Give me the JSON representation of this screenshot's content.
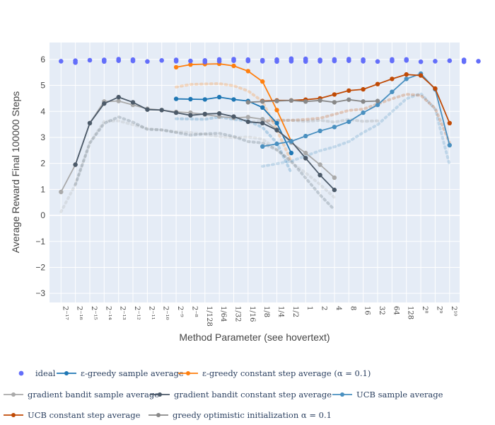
{
  "chart_data": {
    "type": "line",
    "title": "",
    "xlabel": "Method Parameter (see hovertext)",
    "ylabel": "Average Reward Final 100000 Steps",
    "ylim": [
      -3.35,
      6.65
    ],
    "yticks": [
      "6",
      "5",
      "4",
      "3",
      "2",
      "1",
      "0",
      "−1",
      "−2",
      "−3"
    ],
    "ytick_values": [
      6,
      5,
      4,
      3,
      2,
      1,
      0,
      -1,
      -2,
      -3
    ],
    "x_exponent_range": [
      -17.8,
      10.7
    ],
    "xtick_labels": [
      {
        "e": -17,
        "text": "2⁻¹⁷"
      },
      {
        "e": -16,
        "text": "2⁻¹⁶"
      },
      {
        "e": -15,
        "text": "2⁻¹⁵"
      },
      {
        "e": -14,
        "text": "2⁻¹⁴"
      },
      {
        "e": -13,
        "text": "2⁻¹³"
      },
      {
        "e": -12,
        "text": "2⁻¹²"
      },
      {
        "e": -11,
        "text": "2⁻¹¹"
      },
      {
        "e": -10,
        "text": "2⁻¹⁰"
      },
      {
        "e": -9,
        "text": "2⁻⁹"
      },
      {
        "e": -8,
        "text": "2⁻⁸"
      },
      {
        "e": -7,
        "text": "1/128"
      },
      {
        "e": -6,
        "text": "1/64"
      },
      {
        "e": -5,
        "text": "1/32"
      },
      {
        "e": -4,
        "text": "1/16"
      },
      {
        "e": -3,
        "text": "1/8"
      },
      {
        "e": -2,
        "text": "1/4"
      },
      {
        "e": -1,
        "text": "1/2"
      },
      {
        "e": 0,
        "text": "1"
      },
      {
        "e": 1,
        "text": "2"
      },
      {
        "e": 2,
        "text": "4"
      },
      {
        "e": 3,
        "text": "8"
      },
      {
        "e": 4,
        "text": "16"
      },
      {
        "e": 5,
        "text": "32"
      },
      {
        "e": 6,
        "text": "64"
      },
      {
        "e": 7,
        "text": "128"
      },
      {
        "e": 8,
        "text": "2⁸"
      },
      {
        "e": 9,
        "text": "2⁹"
      },
      {
        "e": 10,
        "text": "2¹⁰"
      }
    ],
    "ideal": {
      "name": "ideal",
      "color": "#636efa",
      "points": [
        [
          -17,
          5.93
        ],
        [
          -16,
          5.88
        ],
        [
          -16,
          5.95
        ],
        [
          -15,
          5.97
        ],
        [
          -14,
          5.92
        ],
        [
          -14,
          5.98
        ],
        [
          -13,
          5.95
        ],
        [
          -13,
          6.01
        ],
        [
          -12,
          5.94
        ],
        [
          -12,
          5.99
        ],
        [
          -11,
          5.92
        ],
        [
          -10,
          5.96
        ],
        [
          -9,
          5.93
        ],
        [
          -9,
          5.98
        ],
        [
          -8,
          5.94
        ],
        [
          -7,
          5.9
        ],
        [
          -7,
          5.96
        ],
        [
          -6,
          5.93
        ],
        [
          -6,
          6.0
        ],
        [
          -5,
          5.95
        ],
        [
          -5,
          6.01
        ],
        [
          -4,
          5.94
        ],
        [
          -4,
          5.99
        ],
        [
          -3,
          5.93
        ],
        [
          -3,
          5.97
        ],
        [
          -2,
          5.92
        ],
        [
          -2,
          5.99
        ],
        [
          -1,
          5.93
        ],
        [
          -1,
          5.98
        ],
        [
          -1,
          6.03
        ],
        [
          0,
          5.92
        ],
        [
          0,
          5.97
        ],
        [
          0,
          6.02
        ],
        [
          1,
          5.93
        ],
        [
          1,
          5.98
        ],
        [
          2,
          5.94
        ],
        [
          2,
          6.0
        ],
        [
          3,
          5.95
        ],
        [
          3,
          6.01
        ],
        [
          4,
          5.93
        ],
        [
          4,
          5.99
        ],
        [
          5,
          5.92
        ],
        [
          6,
          5.94
        ],
        [
          6,
          6.0
        ],
        [
          7,
          5.96
        ],
        [
          7,
          6.0
        ],
        [
          8,
          5.91
        ],
        [
          9,
          5.93
        ],
        [
          10,
          5.95
        ],
        [
          11,
          5.98
        ],
        [
          11,
          5.91
        ],
        [
          12,
          5.93
        ]
      ]
    },
    "series": [
      {
        "name": "ε-greedy sample average",
        "color": "#1f77b4",
        "line": "solid",
        "x": [
          -9,
          -8,
          -7,
          -6,
          -5,
          -4,
          -3,
          -2,
          -1,
          0
        ],
        "y": [
          4.48,
          4.47,
          4.46,
          4.55,
          4.46,
          4.4,
          4.15,
          3.55,
          2.4,
          null
        ]
      },
      {
        "name": "ε-greedy constant step average (α = 0.1)",
        "color": "#ff7f0e",
        "line": "solid",
        "x": [
          -9,
          -8,
          -7,
          -6,
          -5,
          -4,
          -3,
          -2,
          -1
        ],
        "y": [
          5.7,
          5.8,
          5.82,
          5.83,
          5.75,
          5.55,
          5.15,
          4.05,
          2.85
        ]
      },
      {
        "name": "gradient bandit sample average",
        "color": "#aaaaaa",
        "line": "solid",
        "x": [
          -17,
          -16,
          -15,
          -14,
          -13,
          -12,
          -11,
          -10,
          -9,
          -8,
          -7,
          -6,
          -5,
          -4,
          -3,
          -2,
          -1,
          0,
          1,
          2
        ],
        "y": [
          0.9,
          1.95,
          3.55,
          4.38,
          4.4,
          4.25,
          4.1,
          4.05,
          3.98,
          3.95,
          3.88,
          3.8,
          3.75,
          3.78,
          3.7,
          3.3,
          2.8,
          2.4,
          1.95,
          1.45
        ]
      },
      {
        "name": "gradient bandit constant step average",
        "color": "#4c5a69",
        "line": "solid",
        "x": [
          -16,
          -15,
          -14,
          -13,
          -12,
          -11,
          -10,
          -9,
          -8,
          -7,
          -6,
          -5,
          -4,
          -3,
          -2,
          -1,
          0,
          1,
          2
        ],
        "y": [
          1.95,
          3.55,
          4.3,
          4.55,
          4.35,
          4.07,
          4.05,
          3.95,
          3.85,
          3.9,
          3.92,
          3.8,
          3.6,
          3.55,
          3.28,
          2.85,
          2.2,
          1.55,
          0.98
        ]
      },
      {
        "name": "UCB sample average",
        "color": "#4a90c0",
        "line": "solid",
        "x": [
          -3,
          -2,
          -1,
          0,
          1,
          2,
          3,
          4,
          5,
          6,
          7,
          8,
          9,
          10
        ],
        "y": [
          2.65,
          2.75,
          2.85,
          3.05,
          3.25,
          3.4,
          3.6,
          3.95,
          4.25,
          4.75,
          5.25,
          5.45,
          4.85,
          2.7
        ]
      },
      {
        "name": "UCB constant step average",
        "color": "#c04a05",
        "line": "solid",
        "x": [
          -3,
          -2,
          -1,
          0,
          1,
          2,
          3,
          4,
          5,
          6,
          7,
          8,
          9,
          10
        ],
        "y": [
          4.4,
          4.42,
          4.42,
          4.45,
          4.5,
          4.65,
          4.8,
          4.85,
          5.05,
          5.25,
          5.42,
          5.38,
          4.88,
          3.55
        ]
      },
      {
        "name": "greedy optimistic initialization α = 0.1",
        "color": "#888888",
        "line": "solid",
        "x": [
          -4,
          -3,
          -2,
          -1,
          0,
          1,
          2,
          3,
          4,
          5
        ],
        "y": [
          4.35,
          4.38,
          4.4,
          4.42,
          4.38,
          4.42,
          4.35,
          4.45,
          4.38,
          4.4
        ]
      }
    ],
    "legend": [
      "ideal",
      "ε-greedy sample average",
      "ε-greedy constant step average (α = 0.1)",
      "gradient bandit sample average",
      "gradient bandit constant step average",
      "UCB sample average",
      "UCB constant step average",
      "greedy optimistic initialization α = 0.1"
    ],
    "legend_placement": "bottom",
    "grid": true
  }
}
